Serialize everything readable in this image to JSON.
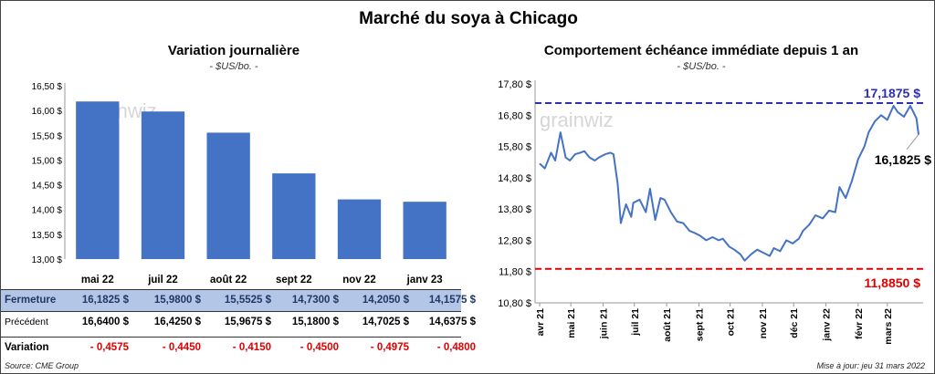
{
  "main_title": "Marché du soya à Chicago",
  "colors": {
    "bar": "#4472c4",
    "line": "#4472c4",
    "max_line": "#2e2eb8",
    "min_line": "#e00000",
    "table_highlight": "#b4c6e7",
    "negative": "#e00000"
  },
  "watermark": "grainwiz",
  "table": {
    "rows": {
      "close": {
        "label": "Fermeture",
        "values": [
          "16,1825  $",
          "15,9800  $",
          "15,5525  $",
          "14,7300  $",
          "14,2050  $",
          "14,1575  $"
        ]
      },
      "prev": {
        "label": "Précédent",
        "values": [
          "16,6400  $",
          "16,4250  $",
          "15,9675  $",
          "15,1800  $",
          "14,7025  $",
          "14,6375  $"
        ]
      },
      "var": {
        "label": "Variation",
        "values": [
          "- 0,4575",
          "- 0,4450",
          "- 0,4150",
          "- 0,4500",
          "- 0,4975",
          "- 0,4800"
        ]
      }
    }
  },
  "source": "Source: CME Group",
  "update": "Mise à jour: jeu 31 mars 2022",
  "chart_data": [
    {
      "type": "bar",
      "title": "Variation  journalière",
      "subtitle": "- $US/bo. -",
      "categories": [
        "mai 22",
        "juil 22",
        "août 22",
        "sept 22",
        "nov 22",
        "janv 23"
      ],
      "values": [
        16.1825,
        15.98,
        15.5525,
        14.73,
        14.205,
        14.1575
      ],
      "ylim": [
        13.0,
        16.5
      ],
      "yticks": [
        "13,00 $",
        "13,50 $",
        "14,00 $",
        "14,50 $",
        "15,00 $",
        "15,50 $",
        "16,00 $",
        "16,50 $"
      ],
      "ytick_values": [
        13.0,
        13.5,
        14.0,
        14.5,
        15.0,
        15.5,
        16.0,
        16.5
      ],
      "grid": false
    },
    {
      "type": "line",
      "title": "Comportement  échéance immédiate depuis 1 an",
      "subtitle": "- $US/bo. -",
      "ylim": [
        10.8,
        17.8
      ],
      "yticks": [
        "10,80 $",
        "11,80 $",
        "12,80 $",
        "13,80 $",
        "14,80 $",
        "15,80 $",
        "16,80 $",
        "17,80 $"
      ],
      "ytick_values": [
        10.8,
        11.8,
        12.8,
        13.8,
        14.8,
        15.8,
        16.8,
        17.8
      ],
      "xticks": [
        "avr 21",
        "mai 21",
        "juin 21",
        "juil 21",
        "août 21",
        "sept 21",
        "oct 21",
        "nov 21",
        "déc 21",
        "janv 22",
        "févr 22",
        "mars 22"
      ],
      "max_value": 17.1875,
      "max_label": "17,1875  $",
      "min_value": 11.885,
      "min_label": "11,8850  $",
      "last_label": "16,1825  $",
      "grid": false,
      "x": [
        "2021-04-01",
        "2021-04-06",
        "2021-04-12",
        "2021-04-16",
        "2021-04-21",
        "2021-04-26",
        "2021-04-30",
        "2021-05-05",
        "2021-05-10",
        "2021-05-14",
        "2021-05-19",
        "2021-05-24",
        "2021-05-28",
        "2021-06-03",
        "2021-06-08",
        "2021-06-11",
        "2021-06-15",
        "2021-06-18",
        "2021-06-23",
        "2021-06-28",
        "2021-06-30",
        "2021-07-06",
        "2021-07-12",
        "2021-07-16",
        "2021-07-21",
        "2021-07-26",
        "2021-07-30",
        "2021-08-05",
        "2021-08-11",
        "2021-08-17",
        "2021-08-23",
        "2021-08-27",
        "2021-09-02",
        "2021-09-08",
        "2021-09-14",
        "2021-09-20",
        "2021-09-24",
        "2021-09-30",
        "2021-10-05",
        "2021-10-11",
        "2021-10-15",
        "2021-10-21",
        "2021-10-27",
        "2021-11-02",
        "2021-11-08",
        "2021-11-12",
        "2021-11-18",
        "2021-11-24",
        "2021-11-30",
        "2021-12-06",
        "2021-12-10",
        "2021-12-16",
        "2021-12-22",
        "2021-12-29",
        "2022-01-04",
        "2022-01-10",
        "2022-01-14",
        "2022-01-20",
        "2022-01-26",
        "2022-02-01",
        "2022-02-07",
        "2022-02-11",
        "2022-02-17",
        "2022-02-23",
        "2022-03-01",
        "2022-03-07",
        "2022-03-11",
        "2022-03-17",
        "2022-03-23",
        "2022-03-29",
        "2022-03-31"
      ],
      "y": [
        15.25,
        15.1,
        15.6,
        15.35,
        16.25,
        15.45,
        15.35,
        15.55,
        15.6,
        15.65,
        15.45,
        15.35,
        15.45,
        15.55,
        15.6,
        15.55,
        14.6,
        13.35,
        13.95,
        13.55,
        14.0,
        14.1,
        13.7,
        14.45,
        13.45,
        14.15,
        14.1,
        13.7,
        13.4,
        13.35,
        13.1,
        13.05,
        12.95,
        12.8,
        12.9,
        12.8,
        12.85,
        12.6,
        12.5,
        12.35,
        12.15,
        12.35,
        12.5,
        12.4,
        12.3,
        12.55,
        12.45,
        12.8,
        12.7,
        12.85,
        13.1,
        13.3,
        13.6,
        13.5,
        13.75,
        13.7,
        14.5,
        14.15,
        14.7,
        15.4,
        15.8,
        16.25,
        16.6,
        16.8,
        16.65,
        17.1,
        16.9,
        16.75,
        17.1,
        16.7,
        16.1825
      ]
    }
  ]
}
